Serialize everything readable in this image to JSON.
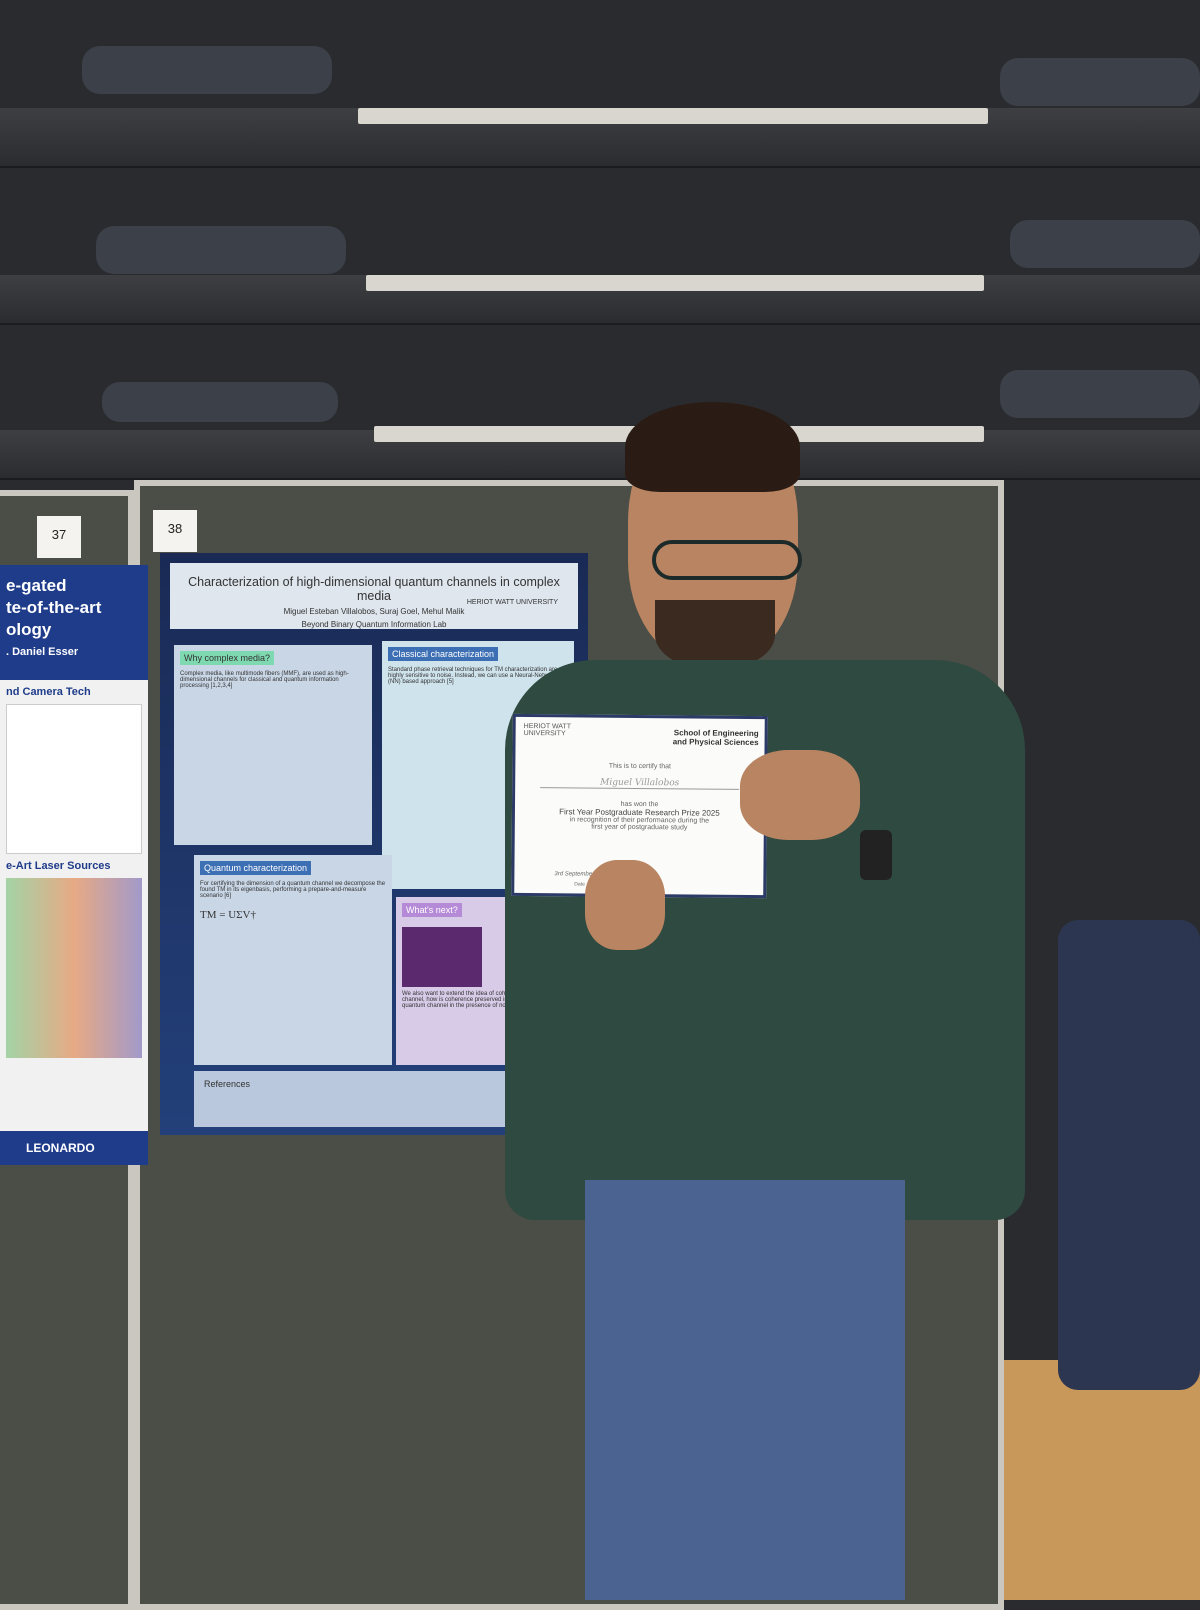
{
  "board_numbers": [
    "37",
    "38"
  ],
  "left_poster": {
    "title_fragments": [
      "e-gated",
      "te-of-the-art",
      "ology"
    ],
    "author": ". Daniel Esser",
    "section_1": "nd Camera Tech",
    "section_2": "e-Art Laser Sources",
    "logo": "LEONARDO"
  },
  "poster": {
    "title": "Characterization of high-dimensional quantum channels in complex media",
    "authors": "Miguel Esteban Villalobos, Suraj Goel, Mehul Malik",
    "lab": "Beyond Binary Quantum Information Lab",
    "university": "HERIOT WATT UNIVERSITY",
    "sections": [
      {
        "heading": "Why complex media?",
        "text": "Complex media, like multimode fibers (MMF), are used as high-dimensional channels for classical and quantum information processing [1,2,3,4]"
      },
      {
        "heading": "Classical characterization",
        "text": "Standard phase retrieval techniques for TM characterization are highly sensitive to noise. Instead, we can use a Neural-Network (NN) based approach [5]"
      },
      {
        "heading": "Quantum characterization",
        "text": "For certifying the dimension of a quantum channel we decompose the found TM in its eigenbasis, performing a prepare-and-measure scenario [6]"
      },
      {
        "heading": "What's next?",
        "text": "We also want to extend the idea of coherence to a quantum channel, how is coherence preserved in a high-dimensional quantum channel in the presence of noise?"
      },
      {
        "heading": "References",
        "text": ""
      }
    ],
    "equation": "TM = UΣV†"
  },
  "certificate": {
    "logo": "HERIOT WATT UNIVERSITY",
    "school": "School of Engineering and Physical Sciences",
    "intro": "This is to certify that",
    "name": "Miguel Villalobos",
    "has_won": "has won the",
    "prize": "First Year Postgraduate Research Prize 2025",
    "reason": "in recognition of their performance during the first year of postgraduate study",
    "date": "3rd September 2025",
    "date_label": "Date"
  },
  "colors": {
    "sweater": "#2f4a40",
    "jeans": "#4a6390",
    "board": "#4b4d47",
    "poster_bg": "#1f3468"
  }
}
